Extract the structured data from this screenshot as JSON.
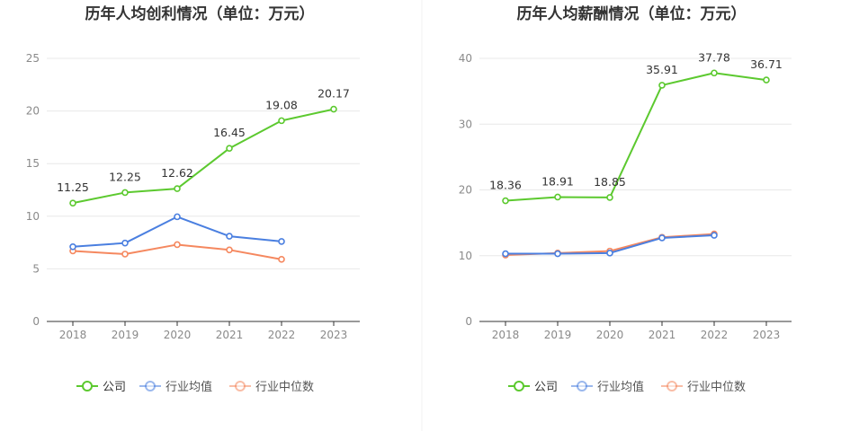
{
  "chart_data": [
    {
      "type": "line",
      "title": "历年人均创利情况（单位：万元）",
      "categories": [
        "2018",
        "2019",
        "2020",
        "2021",
        "2022",
        "2023"
      ],
      "ylim": [
        0,
        25
      ],
      "yticks": [
        0,
        5,
        10,
        15,
        20,
        25
      ],
      "grid": true,
      "legend_position": "bottom",
      "series": [
        {
          "name": "公司",
          "color": "#5cc92f",
          "values": [
            11.25,
            12.25,
            12.62,
            16.45,
            19.08,
            20.17
          ],
          "labels": [
            "11.25",
            "12.25",
            "12.62",
            "16.45",
            "19.08",
            "20.17"
          ]
        },
        {
          "name": "行业均值",
          "color": "#4a7fe0",
          "values": [
            7.1,
            7.45,
            9.95,
            8.1,
            7.6,
            null
          ]
        },
        {
          "name": "行业中位数",
          "color": "#f5885f",
          "values": [
            6.7,
            6.4,
            7.3,
            6.8,
            5.9,
            null
          ]
        }
      ]
    },
    {
      "type": "line",
      "title": "历年人均薪酬情况（单位：万元）",
      "categories": [
        "2018",
        "2019",
        "2020",
        "2021",
        "2022",
        "2023"
      ],
      "ylim": [
        0,
        40
      ],
      "yticks": [
        0,
        10,
        20,
        30,
        40
      ],
      "grid": true,
      "legend_position": "bottom",
      "series": [
        {
          "name": "公司",
          "color": "#5cc92f",
          "values": [
            18.36,
            18.91,
            18.85,
            35.91,
            37.78,
            36.71
          ],
          "labels": [
            "18.36",
            "18.91",
            "18.85",
            "35.91",
            "37.78",
            "36.71"
          ]
        },
        {
          "name": "行业均值",
          "color": "#4a7fe0",
          "values": [
            10.3,
            10.3,
            10.4,
            12.7,
            13.1,
            null
          ]
        },
        {
          "name": "行业中位数",
          "color": "#f5885f",
          "values": [
            10.1,
            10.4,
            10.7,
            12.8,
            13.3,
            null
          ]
        }
      ]
    }
  ]
}
